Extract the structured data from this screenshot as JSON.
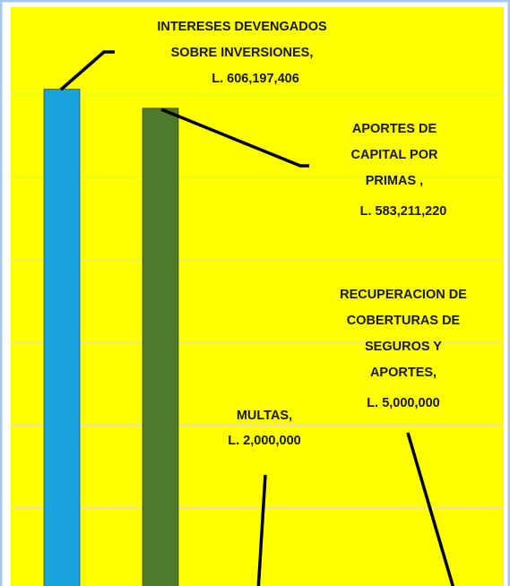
{
  "chart_data": {
    "type": "bar",
    "categories": [
      "INTERESES DEVENGADOS SOBRE INVERSIONES,",
      "APORTES DE CAPITAL POR PRIMAS ,",
      "MULTAS,",
      "RECUPERACION DE COBERTURAS DE SEGUROS Y APORTES,"
    ],
    "values": [
      606197406,
      583211220,
      2000000,
      5000000
    ],
    "value_labels": [
      "L. 606,197,406",
      "L. 583,211,220",
      "L. 2,000,000",
      "L. 5,000,000"
    ],
    "colors": [
      "#1aa3dc",
      "#4f7a2c",
      "#c0504d",
      "#c9b36a"
    ],
    "ylim": [
      0,
      700000000
    ],
    "yticks": [
      100000000,
      200000000,
      300000000,
      400000000,
      500000000,
      600000000
    ],
    "grid": true,
    "background": "#ffff00"
  }
}
